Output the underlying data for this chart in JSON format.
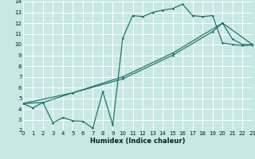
{
  "xlabel": "Humidex (Indice chaleur)",
  "bg_color": "#c8e8e4",
  "grid_color": "#ffffff",
  "line_color": "#1a7068",
  "xlim": [
    0,
    23
  ],
  "ylim": [
    2,
    14
  ],
  "xticks": [
    0,
    1,
    2,
    3,
    4,
    5,
    6,
    7,
    8,
    9,
    10,
    11,
    12,
    13,
    14,
    15,
    16,
    17,
    18,
    19,
    20,
    21,
    22,
    23
  ],
  "yticks": [
    2,
    3,
    4,
    5,
    6,
    7,
    8,
    9,
    10,
    11,
    12,
    13,
    14
  ],
  "line1_x": [
    0,
    1,
    2,
    3,
    4,
    5,
    6,
    7,
    8,
    9,
    10,
    11,
    12,
    13,
    14,
    15,
    16,
    17,
    18,
    19,
    20,
    21,
    22,
    23
  ],
  "line1_y": [
    4.5,
    4.1,
    4.6,
    2.7,
    3.2,
    2.9,
    2.85,
    2.2,
    5.6,
    2.5,
    10.6,
    12.7,
    12.6,
    13.0,
    13.2,
    13.35,
    13.75,
    12.7,
    12.6,
    12.7,
    10.15,
    10.0,
    9.9,
    9.95
  ],
  "line2_x": [
    0,
    2,
    5,
    10,
    15,
    19,
    20,
    21,
    22,
    23
  ],
  "line2_y": [
    4.5,
    4.6,
    5.5,
    6.8,
    9.0,
    11.2,
    12.0,
    10.5,
    10.0,
    10.0
  ],
  "line3_x": [
    0,
    5,
    10,
    15,
    20,
    23
  ],
  "line3_y": [
    4.5,
    5.5,
    7.0,
    9.2,
    12.0,
    10.0
  ]
}
